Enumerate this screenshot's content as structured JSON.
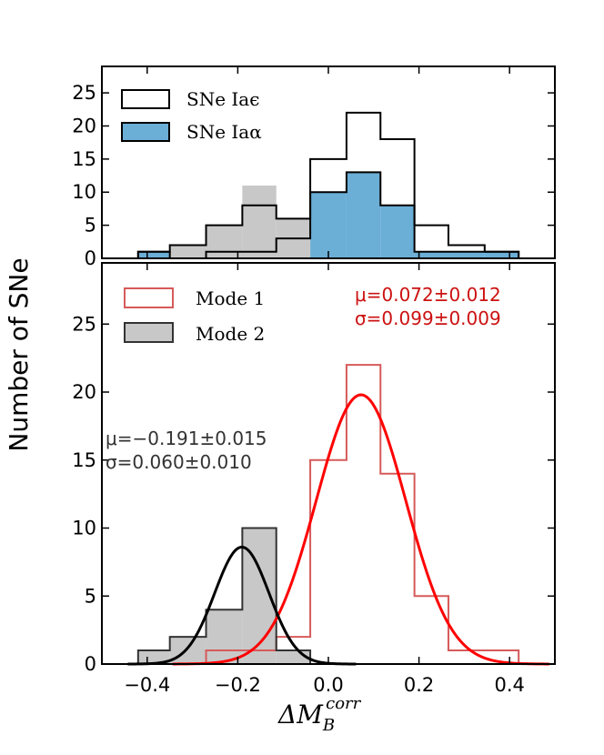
{
  "chart_data": [
    {
      "type": "bar",
      "subtype": "step-histogram",
      "panel": "top",
      "bin_edges": [
        -0.42,
        -0.35,
        -0.27,
        -0.19,
        -0.115,
        -0.04,
        0.04,
        0.115,
        0.19,
        0.265,
        0.345,
        0.42
      ],
      "series": [
        {
          "name": "SNe Iaε",
          "style": "step-outline",
          "color": "#000000",
          "counts": [
            1,
            2,
            5,
            8,
            6,
            15,
            22,
            18,
            5,
            2,
            1
          ]
        },
        {
          "name": "SNe Iaα",
          "style": "filled",
          "color": "#6baed6",
          "counts": [
            1,
            0,
            1,
            1,
            3,
            10,
            13,
            8,
            1,
            1,
            1
          ]
        },
        {
          "name": "Mode 2 fill",
          "style": "filled",
          "color": "#c8c8c8",
          "counts": [
            0,
            2,
            5,
            11,
            6,
            0,
            0,
            0,
            0,
            0,
            0
          ]
        }
      ],
      "xlim": [
        -0.5,
        0.5
      ],
      "ylim": [
        0,
        29
      ],
      "yticks": [
        0,
        5,
        10,
        15,
        20,
        25
      ],
      "ytick_labels": [
        "0",
        "5",
        "10",
        "15",
        "20",
        "25"
      ],
      "legend": {
        "placement": "top-left",
        "entries": [
          {
            "label": "SNe Iaϵ",
            "style": "outline"
          },
          {
            "label": "SNe Iaα",
            "style": "filled"
          }
        ]
      }
    },
    {
      "type": "bar",
      "subtype": "step-histogram-with-gaussians",
      "panel": "bottom",
      "bin_edges": [
        -0.42,
        -0.35,
        -0.27,
        -0.19,
        -0.115,
        -0.04,
        0.04,
        0.115,
        0.19,
        0.265,
        0.345,
        0.42
      ],
      "series": [
        {
          "name": "Mode 1",
          "style": "step-outline",
          "color": "#d65a5a",
          "counts": [
            0,
            0,
            1,
            1,
            2,
            15,
            22,
            14,
            5,
            1,
            1
          ]
        },
        {
          "name": "Mode 2",
          "style": "filled-outline",
          "color": "#c8c8c8",
          "edge": "#333333",
          "counts": [
            1,
            2,
            4,
            10,
            1,
            0,
            0,
            0,
            0,
            0,
            0
          ]
        }
      ],
      "curves": [
        {
          "name": "Mode 1 fit",
          "color": "#ff0000",
          "mu": 0.072,
          "sigma": 0.099,
          "peak": 19.8
        },
        {
          "name": "Mode 2 fit",
          "color": "#000000",
          "mu": -0.191,
          "sigma": 0.06,
          "peak": 8.6
        }
      ],
      "xlim": [
        -0.5,
        0.5
      ],
      "ylim": [
        0,
        29.5
      ],
      "xticks": [
        -0.4,
        -0.2,
        0.0,
        0.2,
        0.4
      ],
      "xtick_labels": [
        "−0.4",
        "−0.2",
        "0.0",
        "0.2",
        "0.4"
      ],
      "yticks": [
        0,
        5,
        10,
        15,
        20,
        25
      ],
      "ytick_labels": [
        "0",
        "5",
        "10",
        "15",
        "20",
        "25"
      ],
      "legend": {
        "placement": "top-left",
        "entries": [
          {
            "label": "Mode 1",
            "style": "outline"
          },
          {
            "label": "Mode 2",
            "style": "filled"
          }
        ]
      },
      "annotations": {
        "mode1_mu": "μ=0.072±0.012",
        "mode1_sigma": "σ=0.099±0.009",
        "mode2_mu": "μ=−0.191±0.015",
        "mode2_sigma": "σ=0.060±0.010"
      }
    }
  ],
  "shared": {
    "ylabel": "Number of SNe",
    "xlabel_main": "ΔM",
    "xlabel_sub": "B",
    "xlabel_sup": "corr",
    "colors": {
      "mode1_edge": "#d65a5a",
      "mode1_curve": "#ff0000",
      "alpha_fill": "#6baed6",
      "mode2_fill": "#c8c8c8",
      "annot_red": "#cc1111",
      "annot_dark": "#333333"
    }
  }
}
